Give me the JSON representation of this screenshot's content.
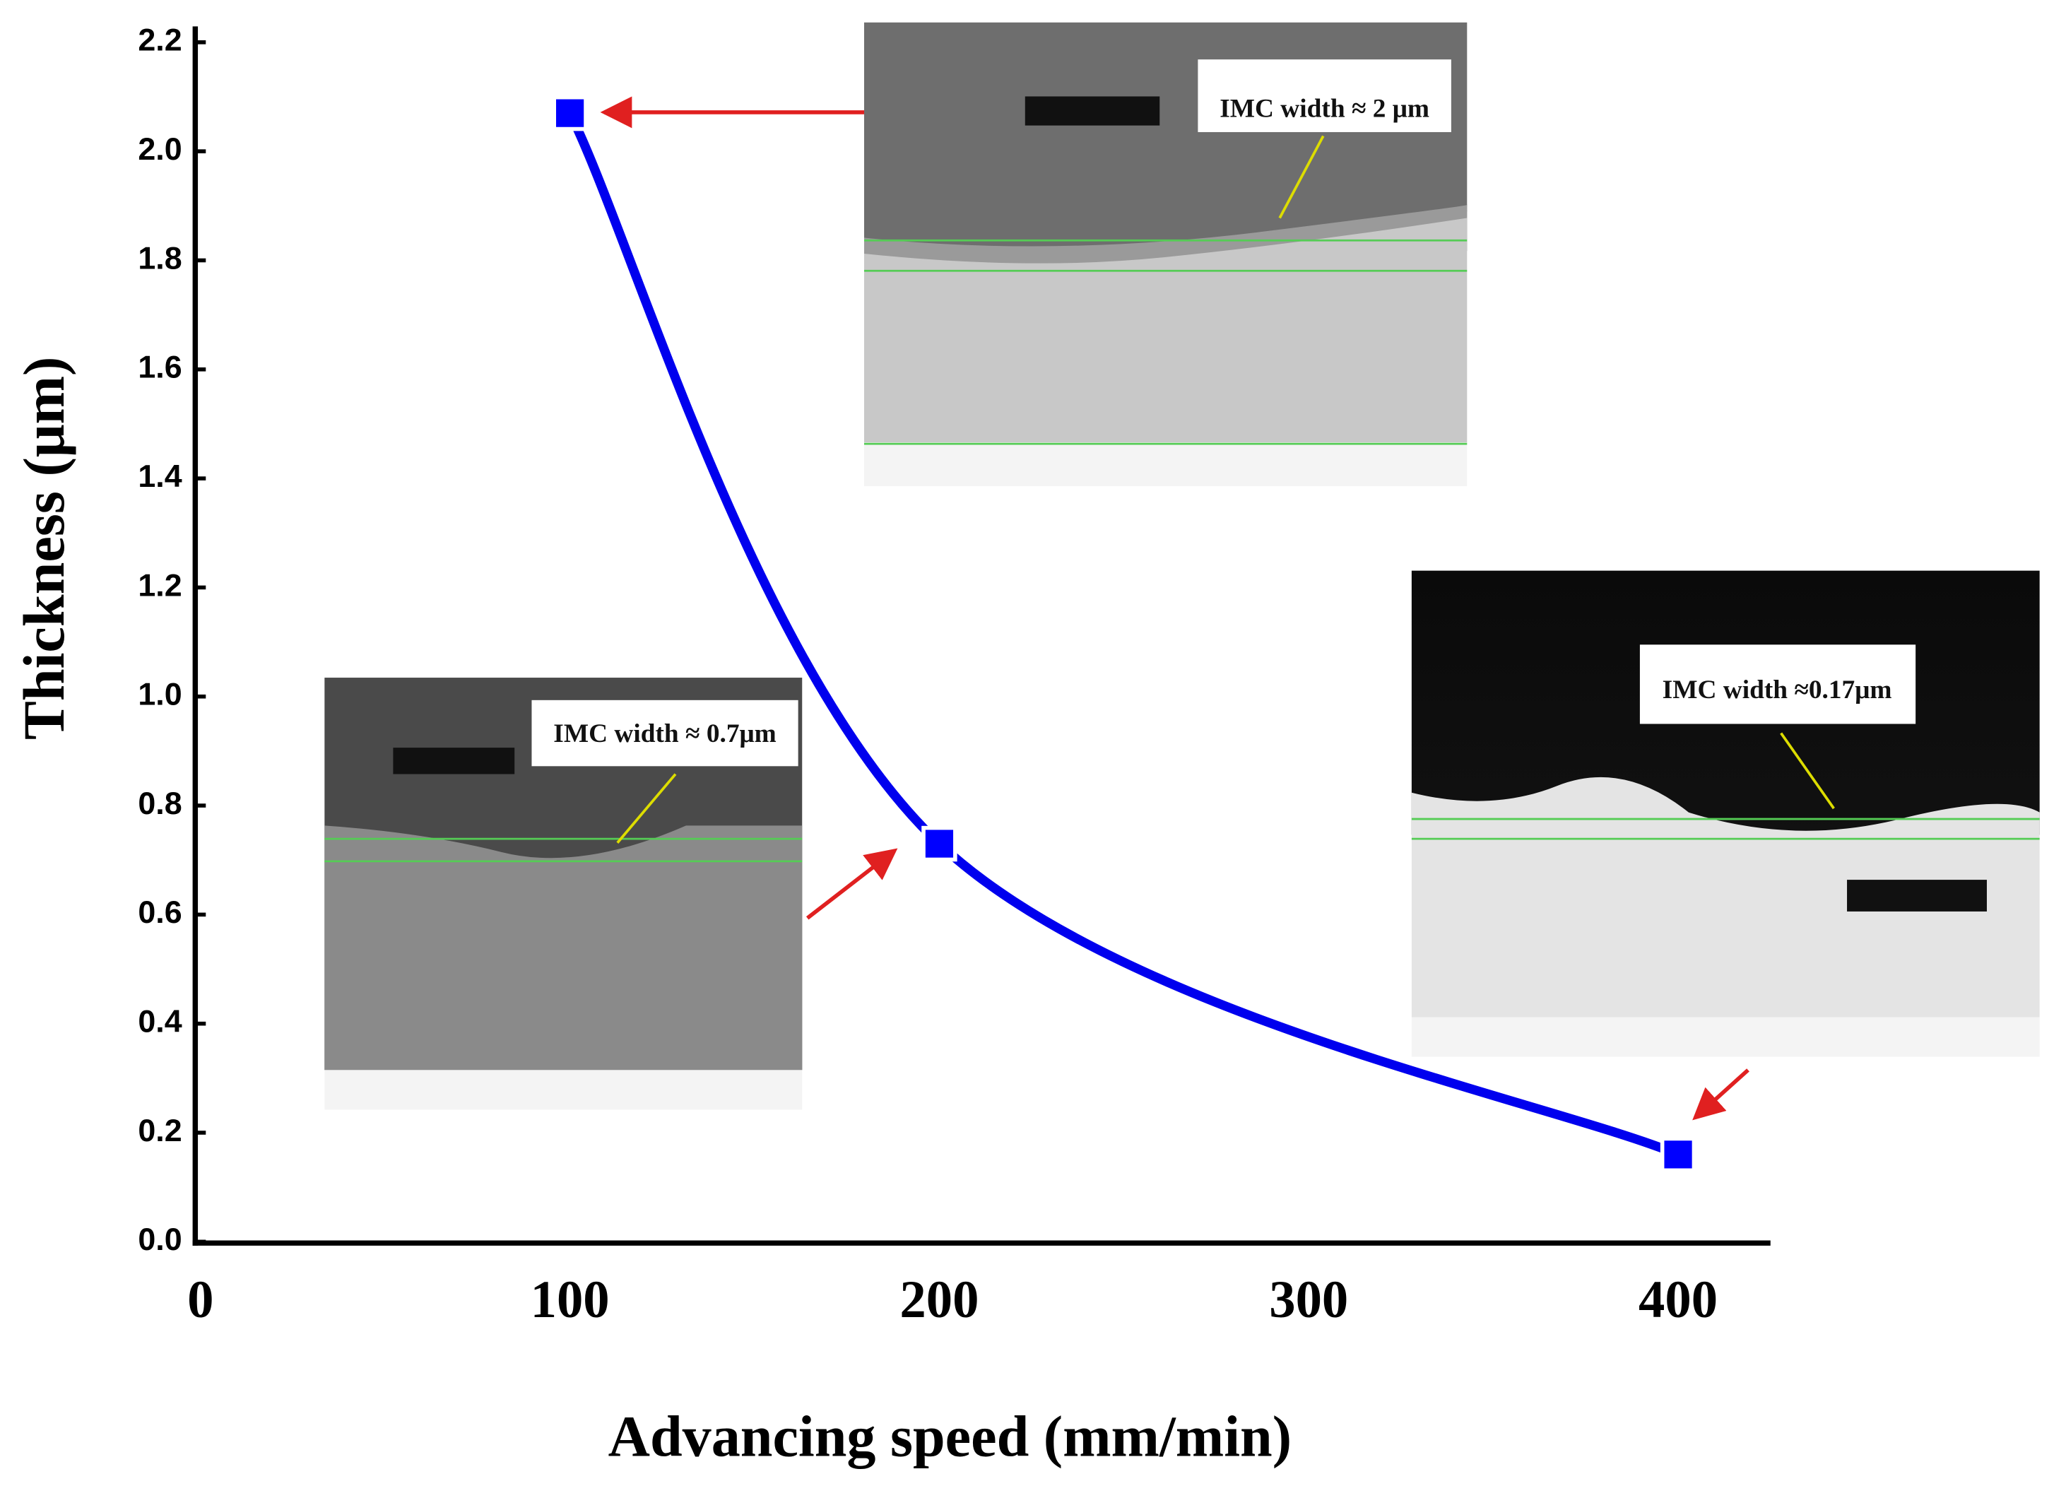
{
  "chart_data": {
    "type": "line",
    "x_label": "Advancing speed (mm/min)",
    "y_label": "Thickness (μm)",
    "x": [
      100,
      200,
      400
    ],
    "values": [
      2.07,
      0.73,
      0.16
    ],
    "color": "#0000ee",
    "marker_color": "#0000ff",
    "xlim": [
      0,
      425
    ],
    "xticks": [
      0,
      100,
      200,
      300,
      400
    ],
    "ylim": [
      0,
      2.2
    ],
    "yticks": [
      {
        "value": 0,
        "label": "0.0"
      },
      0.2,
      0.4,
      0.6,
      0.8,
      {
        "value": 1,
        "label": "1.0"
      },
      1.2,
      1.4,
      1.6,
      1.8,
      {
        "value": 2,
        "label": "2.0"
      },
      2.2
    ],
    "annotations": [
      "IMC width ≈ 2 μm",
      "IMC width ≈ 0.7μm",
      "IMC width ≈0.17μm"
    ]
  }
}
